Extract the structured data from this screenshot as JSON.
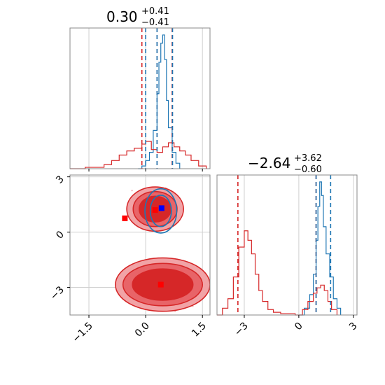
{
  "colors": {
    "blue": "#1f77b4",
    "red": "#d62728",
    "grid": "#cfcfcf",
    "frame": "#888888"
  },
  "chart_data": [
    {
      "type": "histogram",
      "panel": "marginal-x",
      "title": {
        "value": "0.30",
        "plus": "+0.41",
        "minus": "−0.41"
      },
      "xlim": [
        -2.0,
        1.7
      ],
      "grid": true,
      "blue_quantile_lines": [
        0.0,
        0.3,
        0.71
      ],
      "red_quantile_lines": [
        -0.1,
        0.3,
        0.7
      ],
      "series": [
        {
          "color": "blue",
          "x": [
            -0.2,
            -0.1,
            0.0,
            0.1,
            0.2,
            0.3,
            0.35,
            0.4,
            0.45,
            0.5,
            0.55,
            0.6,
            0.7,
            0.8,
            0.9
          ],
          "y": [
            0.0,
            0.02,
            0.06,
            0.12,
            0.28,
            0.55,
            0.78,
            0.92,
            0.98,
            0.8,
            0.5,
            0.3,
            0.12,
            0.04,
            0.0
          ]
        },
        {
          "color": "red",
          "x": [
            -2.0,
            -1.6,
            -1.3,
            -1.1,
            -0.9,
            -0.7,
            -0.5,
            -0.3,
            -0.1,
            0.0,
            0.15,
            0.3,
            0.45,
            0.6,
            0.75,
            0.9,
            1.05,
            1.2,
            1.4,
            1.6
          ],
          "y": [
            0.0,
            0.01,
            0.01,
            0.03,
            0.06,
            0.1,
            0.13,
            0.15,
            0.18,
            0.2,
            0.14,
            0.12,
            0.16,
            0.19,
            0.16,
            0.13,
            0.1,
            0.06,
            0.02,
            0.0
          ]
        }
      ]
    },
    {
      "type": "contour",
      "panel": "joint",
      "xlim": [
        -2.0,
        1.7
      ],
      "ylim": [
        -4.5,
        3.1
      ],
      "xticks": [
        "−1.5",
        "0.0",
        "1.5"
      ],
      "xtick_values": [
        -1.5,
        0.0,
        1.5
      ],
      "yticks": [
        "−3",
        "0",
        "3"
      ],
      "ytick_values": [
        -3,
        0,
        3
      ],
      "grid": true,
      "markers": [
        {
          "color": "blue",
          "x": 0.42,
          "y": 1.3
        },
        {
          "color": "red",
          "x": -0.55,
          "y": 0.75
        },
        {
          "color": "red",
          "x": 0.25,
          "y": 1.2
        },
        {
          "color": "red",
          "x": 0.4,
          "y": -2.85
        }
      ],
      "red_modes": [
        {
          "cx": 0.25,
          "cy": 1.25,
          "rx": [
            0.75,
            0.58,
            0.42
          ],
          "ry": [
            1.2,
            0.95,
            0.7
          ]
        },
        {
          "cx": 0.45,
          "cy": -2.85,
          "rx": [
            1.25,
            1.05,
            0.8
          ],
          "ry": [
            1.45,
            1.15,
            0.85
          ]
        }
      ],
      "blue_mode": {
        "cx": 0.4,
        "cy": 1.15,
        "rx": [
          0.42,
          0.28
        ],
        "ry": [
          1.2,
          0.85
        ]
      }
    },
    {
      "type": "histogram",
      "panel": "marginal-y",
      "title": {
        "value": "−2.64",
        "plus": "+3.62",
        "minus": "−0.60"
      },
      "xlim": [
        -4.5,
        3.2
      ],
      "xticks": [
        "−3",
        "0",
        "3"
      ],
      "xtick_values": [
        -3,
        0,
        3
      ],
      "grid": true,
      "blue_quantile_lines": [
        0.95,
        1.75
      ],
      "red_quantile_lines": [
        -3.35,
        0.95
      ],
      "series": [
        {
          "color": "blue",
          "x": [
            0.0,
            0.3,
            0.6,
            0.8,
            0.95,
            1.05,
            1.15,
            1.25,
            1.35,
            1.5,
            1.7,
            1.9,
            2.1,
            2.3
          ],
          "y": [
            0.0,
            0.05,
            0.15,
            0.3,
            0.55,
            0.8,
            0.98,
            0.88,
            0.65,
            0.45,
            0.28,
            0.12,
            0.05,
            0.0
          ]
        },
        {
          "color": "red",
          "x": [
            -4.5,
            -4.2,
            -3.9,
            -3.6,
            -3.3,
            -3.0,
            -2.8,
            -2.6,
            -2.4,
            -2.2,
            -2.0,
            -1.7,
            -1.4,
            -1.0,
            -0.6,
            -0.2,
            0.2,
            0.5,
            0.8,
            1.0,
            1.2,
            1.4,
            1.6,
            1.8,
            2.1
          ],
          "y": [
            0.0,
            0.05,
            0.12,
            0.28,
            0.5,
            0.62,
            0.55,
            0.45,
            0.3,
            0.18,
            0.1,
            0.04,
            0.02,
            0.01,
            0.01,
            0.0,
            0.04,
            0.1,
            0.16,
            0.2,
            0.22,
            0.18,
            0.1,
            0.04,
            0.0
          ]
        }
      ]
    }
  ]
}
